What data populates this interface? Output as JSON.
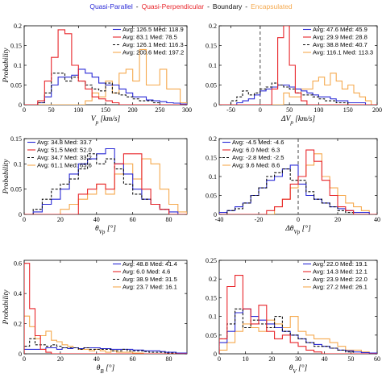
{
  "legend": {
    "items": [
      {
        "label": "Quasi-Parallel",
        "color": "#2a2ad6"
      },
      {
        "label": "Quasi-Perpendicular",
        "color": "#e8262b"
      },
      {
        "label": "Boundary",
        "color": "#111111"
      },
      {
        "label": "Encapsulated",
        "color": "#f5a94e"
      }
    ],
    "separator": "-"
  },
  "ylabel": "Probability",
  "chart_data": [
    {
      "type": "histogram",
      "xlabel": "V_p [km/s]",
      "ylabel": "Probability",
      "xlim": [
        0,
        300
      ],
      "ylim": [
        0,
        0.2
      ],
      "xticks": [
        "0",
        "50",
        "100",
        "150",
        "200",
        "250",
        "300"
      ],
      "yticks": [
        "0",
        "0.05",
        "0.1",
        "0.15",
        "0.2"
      ],
      "bin_start": 0,
      "bin_width": 12.5,
      "series": [
        {
          "name": "Quasi-Parallel",
          "stats": "Avg: 126.5 Med: 118.9",
          "color": "#2a2ad6",
          "dash": "",
          "values": [
            0,
            0,
            0.005,
            0.02,
            0.05,
            0.07,
            0.07,
            0.075,
            0.09,
            0.08,
            0.07,
            0.055,
            0.05,
            0.05,
            0.04,
            0.03,
            0.02,
            0.02,
            0.012,
            0.01,
            0.008,
            0.005,
            0.004,
            0.002
          ]
        },
        {
          "name": "Quasi-Perpendicular",
          "stats": "Avg: 83.1 Med: 78.5",
          "color": "#e8262b",
          "dash": "",
          "values": [
            0,
            0,
            0.01,
            0.06,
            0.12,
            0.19,
            0.18,
            0.1,
            0.06,
            0.04,
            0.02,
            0.015,
            0.01,
            0.005,
            0,
            0,
            0,
            0,
            0,
            0,
            0,
            0,
            0,
            0
          ]
        },
        {
          "name": "Boundary",
          "stats": "Avg: 126.1 Med: 116.3",
          "color": "#111111",
          "dash": "3,2",
          "values": [
            0,
            0,
            0.005,
            0.03,
            0.08,
            0.08,
            0.06,
            0.07,
            0.06,
            0.05,
            0.04,
            0.035,
            0.055,
            0.03,
            0.025,
            0.02,
            0.015,
            0.01,
            0.01,
            0.005,
            0,
            0,
            0,
            0
          ]
        },
        {
          "name": "Encapsulated",
          "stats": "Avg: 200.6 Med: 197.2",
          "color": "#f5a94e",
          "dash": "",
          "values": [
            0,
            0,
            0,
            0,
            0,
            0,
            0,
            0,
            0,
            0.01,
            0.03,
            0.02,
            0.06,
            0.03,
            0.08,
            0.09,
            0.06,
            0.14,
            0.05,
            0.05,
            0.09,
            0.04,
            0.04,
            0.005
          ]
        }
      ]
    },
    {
      "type": "histogram",
      "xlabel": "ΔV_p [km/s]",
      "ylabel": "",
      "xlim": [
        -70,
        200
      ],
      "ylim": [
        0,
        0.2
      ],
      "xticks": [
        "-50",
        "0",
        "50",
        "100",
        "150",
        "200"
      ],
      "yticks": [
        "0",
        "0.05",
        "0.1",
        "0.15",
        "0.2"
      ],
      "vline": 0,
      "bin_start": -70,
      "bin_width": 10,
      "series": [
        {
          "name": "Quasi-Parallel",
          "stats": "Avg: 47.6 Med: 45.9",
          "color": "#2a2ad6",
          "dash": "",
          "values": [
            0,
            0,
            0,
            0.005,
            0.01,
            0.015,
            0.025,
            0.035,
            0.04,
            0.045,
            0.05,
            0.05,
            0.045,
            0.04,
            0.035,
            0.03,
            0.025,
            0.02,
            0.02,
            0.015,
            0.01,
            0.01,
            0.005,
            0.005,
            0.005,
            0,
            0
          ]
        },
        {
          "name": "Quasi-Perpendicular",
          "stats": "Avg: 29.9 Med: 28.8",
          "color": "#e8262b",
          "dash": "",
          "values": [
            0,
            0,
            0,
            0,
            0,
            0,
            0,
            0,
            0,
            0.04,
            0.17,
            0.2,
            0.1,
            0.03,
            0.01,
            0,
            0,
            0,
            0,
            0,
            0,
            0,
            0,
            0,
            0,
            0,
            0
          ]
        },
        {
          "name": "Boundary",
          "stats": "Avg: 38.8 Med: 40.7",
          "color": "#111111",
          "dash": "3,2",
          "values": [
            0,
            0,
            0.01,
            0.02,
            0.035,
            0.025,
            0.03,
            0.04,
            0.045,
            0.055,
            0.05,
            0.045,
            0.04,
            0.03,
            0.025,
            0.025,
            0.02,
            0.015,
            0.01,
            0.01,
            0.005,
            0.005,
            0,
            0,
            0,
            0,
            0
          ]
        },
        {
          "name": "Encapsulated",
          "stats": "Avg: 116.1 Med: 113.3",
          "color": "#f5a94e",
          "dash": "",
          "values": [
            0,
            0,
            0,
            0,
            0,
            0,
            0,
            0,
            0,
            0,
            0,
            0.03,
            0.02,
            0.02,
            0.04,
            0.04,
            0.06,
            0.07,
            0.05,
            0.08,
            0.06,
            0.04,
            0.05,
            0.03,
            0.02,
            0.01,
            0
          ]
        }
      ]
    },
    {
      "type": "histogram",
      "xlabel": "θ_Vp [°]",
      "ylabel": "Probability",
      "xlim": [
        0,
        90
      ],
      "ylim": [
        0,
        0.15
      ],
      "xticks": [
        "0",
        "20",
        "40",
        "60",
        "80"
      ],
      "yticks": [
        "0",
        "0.05",
        "0.1",
        "0.15"
      ],
      "bin_start": 0,
      "bin_width": 5,
      "series": [
        {
          "name": "Quasi-Parallel",
          "stats": "Avg: 34.8 Med: 33.7",
          "color": "#2a2ad6",
          "dash": "",
          "values": [
            0,
            0.005,
            0.02,
            0.03,
            0.05,
            0.08,
            0.1,
            0.11,
            0.12,
            0.13,
            0.1,
            0.08,
            0.05,
            0.03,
            0.02,
            0.01,
            0.005,
            0
          ]
        },
        {
          "name": "Quasi-Perpendicular",
          "stats": "Avg: 51.5 Med: 52.0",
          "color": "#e8262b",
          "dash": "",
          "values": [
            0,
            0,
            0,
            0,
            0,
            0,
            0.04,
            0.05,
            0.06,
            0.05,
            0.1,
            0.12,
            0.12,
            0.05,
            0.02,
            0.01,
            0,
            0
          ]
        },
        {
          "name": "Boundary",
          "stats": "Avg: 34.7 Med: 33.2",
          "color": "#111111",
          "dash": "3,2",
          "values": [
            0,
            0.01,
            0.03,
            0.05,
            0.06,
            0.07,
            0.09,
            0.12,
            0.1,
            0.11,
            0.09,
            0.06,
            0.04,
            0.03,
            0.02,
            0.01,
            0,
            0
          ]
        },
        {
          "name": "Encapsulated",
          "stats": "Avg: 61.1 Med: 65.6",
          "color": "#f5a94e",
          "dash": "",
          "values": [
            0,
            0,
            0,
            0,
            0.01,
            0.02,
            0.03,
            0.04,
            0.06,
            0.04,
            0.08,
            0.1,
            0.07,
            0.11,
            0.1,
            0.05,
            0.02,
            0.005
          ]
        }
      ]
    },
    {
      "type": "histogram",
      "xlabel": "Δθ_Vp [°]",
      "ylabel": "",
      "xlim": [
        -40,
        40
      ],
      "ylim": [
        0,
        0.2
      ],
      "xticks": [
        "-40",
        "-20",
        "0",
        "20",
        "40"
      ],
      "yticks": [
        "0",
        "0.05",
        "0.1",
        "0.15",
        "0.2"
      ],
      "vline": 0,
      "bin_start": -40,
      "bin_width": 4,
      "series": [
        {
          "name": "Quasi-Parallel",
          "stats": "Avg: -4.5 Med: -4.6",
          "color": "#2a2ad6",
          "dash": "",
          "values": [
            0.005,
            0.01,
            0.02,
            0.03,
            0.05,
            0.07,
            0.09,
            0.1,
            0.12,
            0.13,
            0.08,
            0.05,
            0.04,
            0.03,
            0.02,
            0.015,
            0.01,
            0.005,
            0.005,
            0
          ]
        },
        {
          "name": "Quasi-Perpendicular",
          "stats": "Avg: 6.0 Med: 6.3",
          "color": "#e8262b",
          "dash": "",
          "values": [
            0,
            0,
            0,
            0,
            0,
            0,
            0.01,
            0.02,
            0.04,
            0.08,
            0.1,
            0.17,
            0.14,
            0.09,
            0.05,
            0.02,
            0.01,
            0,
            0,
            0
          ]
        },
        {
          "name": "Boundary",
          "stats": "Avg: -2.8 Med: -2.5",
          "color": "#111111",
          "dash": "3,2",
          "values": [
            0,
            0.01,
            0.015,
            0.03,
            0.05,
            0.07,
            0.1,
            0.11,
            0.12,
            0.09,
            0.09,
            0.06,
            0.04,
            0.03,
            0.02,
            0.01,
            0.005,
            0,
            0,
            0
          ]
        },
        {
          "name": "Encapsulated",
          "stats": "Avg: 9.6 Med: 8.6",
          "color": "#f5a94e",
          "dash": "",
          "values": [
            0,
            0,
            0,
            0,
            0,
            0,
            0,
            0.02,
            0.04,
            0.07,
            0.1,
            0.13,
            0.16,
            0.1,
            0.07,
            0.05,
            0.03,
            0.02,
            0.01,
            0
          ]
        }
      ]
    },
    {
      "type": "histogram",
      "xlabel": "θ_B [°]",
      "ylabel": "Probability",
      "xlim": [
        0,
        90
      ],
      "ylim": [
        0,
        0.62
      ],
      "xticks": [
        "0",
        "20",
        "40",
        "60",
        "80"
      ],
      "yticks": [
        "0",
        "0.2",
        "0.4",
        "0.6"
      ],
      "bin_start": 0,
      "bin_width": 3,
      "series": [
        {
          "name": "Quasi-Parallel",
          "stats": "Avg: 48.8 Med: 41.4",
          "color": "#2a2ad6",
          "dash": "",
          "values": [
            0.03,
            0.03,
            0.03,
            0.03,
            0.04,
            0.04,
            0.03,
            0.04,
            0.035,
            0.04,
            0.035,
            0.04,
            0.04,
            0.04,
            0.035,
            0.035,
            0.03,
            0.03,
            0.03,
            0.03,
            0.025,
            0.025,
            0.02,
            0.02,
            0.02,
            0.015,
            0.01,
            0.01,
            0.005,
            0.005
          ]
        },
        {
          "name": "Quasi-Perpendicular",
          "stats": "Avg: 6.0 Med: 4.6",
          "color": "#e8262b",
          "dash": "",
          "values": [
            0.6,
            0.3,
            0.12,
            0.03,
            0.01,
            0,
            0,
            0,
            0,
            0,
            0,
            0,
            0,
            0,
            0,
            0,
            0,
            0,
            0,
            0,
            0,
            0,
            0,
            0,
            0,
            0,
            0,
            0,
            0,
            0
          ]
        },
        {
          "name": "Boundary",
          "stats": "Avg: 38.9 Med: 31.5",
          "color": "#111111",
          "dash": "3,2",
          "values": [
            0.05,
            0.1,
            0.06,
            0.06,
            0.05,
            0.06,
            0.05,
            0.04,
            0.04,
            0.04,
            0.03,
            0.04,
            0.03,
            0.03,
            0.03,
            0.03,
            0.02,
            0.02,
            0.03,
            0.02,
            0.02,
            0.02,
            0.015,
            0.01,
            0.01,
            0.01,
            0.005,
            0.005,
            0,
            0
          ]
        },
        {
          "name": "Encapsulated",
          "stats": "Avg: 23.7 Med: 16.1",
          "color": "#f5a94e",
          "dash": "",
          "values": [
            0.25,
            0.18,
            0.1,
            0.12,
            0.15,
            0.09,
            0.08,
            0.06,
            0.05,
            0.04,
            0.03,
            0.03,
            0.02,
            0.03,
            0.02,
            0.01,
            0.02,
            0.01,
            0.01,
            0.01,
            0.005,
            0.005,
            0,
            0,
            0,
            0,
            0,
            0,
            0,
            0
          ]
        }
      ]
    },
    {
      "type": "histogram",
      "xlabel": "θ_V [°]",
      "ylabel": "",
      "xlim": [
        0,
        60
      ],
      "ylim": [
        0,
        0.25
      ],
      "xticks": [
        "0",
        "10",
        "20",
        "30",
        "40",
        "50",
        "60"
      ],
      "yticks": [
        "0",
        "0.05",
        "0.1",
        "0.15",
        "0.2",
        "0.25"
      ],
      "bin_start": 0,
      "bin_width": 3,
      "series": [
        {
          "name": "Quasi-Parallel",
          "stats": "Avg: 22.0 Med: 19.1",
          "color": "#2a2ad6",
          "dash": "",
          "values": [
            0.03,
            0.06,
            0.11,
            0.12,
            0.1,
            0.09,
            0.08,
            0.07,
            0.06,
            0.05,
            0.04,
            0.03,
            0.025,
            0.02,
            0.015,
            0.01,
            0.008,
            0.005,
            0.003,
            0.002
          ]
        },
        {
          "name": "Quasi-Perpendicular",
          "stats": "Avg: 14.3 Med: 12.1",
          "color": "#e8262b",
          "dash": "",
          "values": [
            0.04,
            0.18,
            0.21,
            0.12,
            0.08,
            0.13,
            0.06,
            0.04,
            0.05,
            0.03,
            0.02,
            0.01,
            0.005,
            0,
            0,
            0,
            0,
            0,
            0,
            0
          ]
        },
        {
          "name": "Boundary",
          "stats": "Avg: 23.9 Med: 22.0",
          "color": "#111111",
          "dash": "3,2",
          "values": [
            0.04,
            0.08,
            0.12,
            0.07,
            0.09,
            0.08,
            0.07,
            0.1,
            0.06,
            0.05,
            0.04,
            0.03,
            0.02,
            0.02,
            0.015,
            0.01,
            0.005,
            0,
            0,
            0
          ]
        },
        {
          "name": "Encapsulated",
          "stats": "Avg: 27.2 Med: 26.1",
          "color": "#f5a94e",
          "dash": "",
          "values": [
            0.01,
            0.03,
            0.06,
            0.08,
            0.07,
            0.06,
            0.09,
            0.08,
            0.07,
            0.1,
            0.06,
            0.05,
            0.04,
            0.04,
            0.03,
            0.02,
            0.01,
            0.01,
            0.005,
            0
          ]
        }
      ]
    }
  ]
}
